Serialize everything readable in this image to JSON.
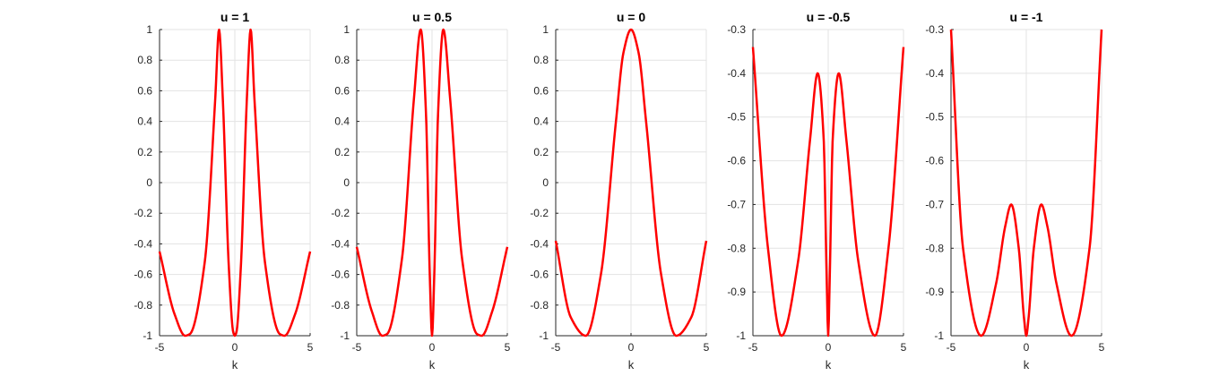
{
  "chart_data": [
    {
      "type": "line",
      "title": "u = 1",
      "u": 1,
      "xlabel": "k",
      "ylabel": "",
      "xlim": [
        -5,
        5
      ],
      "ylim": [
        -1,
        1
      ],
      "xticks": [
        -5,
        0,
        5
      ],
      "yticks": [
        -1,
        -0.8,
        -0.6,
        -0.4,
        -0.2,
        0,
        0.2,
        0.4,
        0.6,
        0.8,
        1
      ],
      "grid": true,
      "line_color": "#ff0000",
      "series": [
        {
          "x": [
            -5,
            -4,
            -3.3,
            -3,
            -2,
            -1.3,
            -1.05,
            -0.8,
            -0.4,
            -0.1,
            0,
            0.1,
            0.4,
            0.8,
            1.05,
            1.3,
            2,
            3,
            3.3,
            4,
            5
          ],
          "y": [
            -0.45,
            -0.86,
            -1,
            -0.99,
            -0.52,
            0.55,
            1,
            0.55,
            -0.55,
            -0.98,
            -1,
            -0.98,
            -0.55,
            0.55,
            1,
            0.55,
            -0.52,
            -0.99,
            -1,
            -0.86,
            -0.45
          ]
        }
      ]
    },
    {
      "type": "line",
      "title": "u = 0.5",
      "u": 0.5,
      "xlabel": "k",
      "ylabel": "",
      "xlim": [
        -5,
        5
      ],
      "ylim": [
        -1,
        1
      ],
      "xticks": [
        -5,
        0,
        5
      ],
      "yticks": [
        -1,
        -0.8,
        -0.6,
        -0.4,
        -0.2,
        0,
        0.2,
        0.4,
        0.6,
        0.8,
        1
      ],
      "grid": true,
      "line_color": "#ff0000",
      "series": [
        {
          "x": [
            -5,
            -4,
            -3.3,
            -3,
            -2,
            -1.2,
            -0.75,
            -0.4,
            -0.15,
            0,
            0.15,
            0.4,
            0.75,
            1.2,
            2,
            3,
            3.3,
            4,
            5
          ],
          "y": [
            -0.42,
            -0.84,
            -1,
            -0.99,
            -0.5,
            0.55,
            1,
            0.45,
            -0.6,
            -1,
            -0.6,
            0.45,
            1,
            0.55,
            -0.5,
            -0.99,
            -1,
            -0.84,
            -0.42
          ]
        }
      ]
    },
    {
      "type": "line",
      "title": "u = 0",
      "u": 0,
      "xlabel": "k",
      "ylabel": "",
      "xlim": [
        -5,
        5
      ],
      "ylim": [
        -1,
        1
      ],
      "xticks": [
        -5,
        0,
        5
      ],
      "yticks": [
        -1,
        -0.8,
        -0.6,
        -0.4,
        -0.2,
        0,
        0.2,
        0.4,
        0.6,
        0.8,
        1
      ],
      "grid": true,
      "line_color": "#ff0000",
      "series": [
        {
          "x": [
            -5,
            -4,
            -3,
            -2,
            -1,
            -0.5,
            0,
            0.5,
            1,
            2,
            3,
            4,
            5
          ],
          "y": [
            -0.38,
            -0.88,
            -1,
            -0.6,
            0.4,
            0.85,
            1,
            0.85,
            0.4,
            -0.6,
            -1,
            -0.88,
            -0.38
          ]
        }
      ]
    },
    {
      "type": "line",
      "title": "u = -0.5",
      "u": -0.5,
      "xlabel": "k",
      "ylabel": "",
      "xlim": [
        -5,
        5
      ],
      "ylim": [
        -1,
        -0.3
      ],
      "xticks": [
        -5,
        0,
        5
      ],
      "yticks": [
        -1,
        -0.9,
        -0.8,
        -0.7,
        -0.6,
        -0.5,
        -0.4,
        -0.3
      ],
      "grid": true,
      "line_color": "#ff0000",
      "series": [
        {
          "x": [
            -5,
            -4,
            -3.1,
            -2,
            -1.2,
            -0.7,
            -0.3,
            -0.1,
            0,
            0.1,
            0.3,
            0.7,
            1.2,
            2,
            3.1,
            4,
            5
          ],
          "y": [
            -0.34,
            -0.8,
            -1,
            -0.83,
            -0.55,
            -0.4,
            -0.55,
            -0.87,
            -1,
            -0.87,
            -0.55,
            -0.4,
            -0.55,
            -0.83,
            -1,
            -0.8,
            -0.34
          ]
        }
      ]
    },
    {
      "type": "line",
      "title": "u = -1",
      "u": -1,
      "xlabel": "k",
      "ylabel": "",
      "xlim": [
        -5,
        5
      ],
      "ylim": [
        -1,
        -0.3
      ],
      "xticks": [
        -5,
        0,
        5
      ],
      "yticks": [
        -1,
        -0.9,
        -0.8,
        -0.7,
        -0.6,
        -0.5,
        -0.4,
        -0.3
      ],
      "grid": true,
      "line_color": "#ff0000",
      "series": [
        {
          "x": [
            -5,
            -4.2,
            -3,
            -2,
            -1.4,
            -1,
            -0.5,
            -0.15,
            0,
            0.15,
            0.5,
            1,
            1.4,
            2,
            3,
            4.2,
            5
          ],
          "y": [
            -0.3,
            -0.8,
            -1,
            -0.88,
            -0.75,
            -0.7,
            -0.8,
            -0.96,
            -1,
            -0.96,
            -0.8,
            -0.7,
            -0.75,
            -0.88,
            -1,
            -0.8,
            -0.3
          ]
        }
      ]
    }
  ]
}
